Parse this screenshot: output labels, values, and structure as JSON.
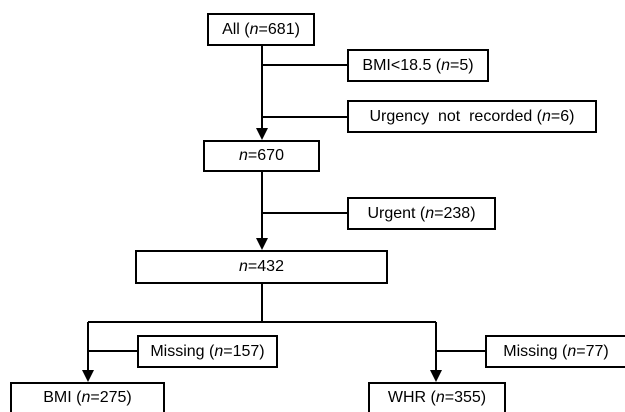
{
  "diagram": {
    "type": "flowchart",
    "nodes": {
      "all": {
        "pre": "All (",
        "var": "n",
        "post": "=681)"
      },
      "excl_bmi": {
        "pre": "BMI<18.5 (",
        "var": "n",
        "post": "=5)"
      },
      "excl_urgency": {
        "pre": "Urgency  not  recorded (",
        "var": "n",
        "post": "=6)"
      },
      "n670": {
        "pre": "",
        "var": "n",
        "post": "=670"
      },
      "excl_urgent": {
        "pre": "Urgent (",
        "var": "n",
        "post": "=238)"
      },
      "n432": {
        "pre": "",
        "var": "n",
        "post": "=432"
      },
      "missing_bmi": {
        "pre": "Missing (",
        "var": "n",
        "post": "=157)"
      },
      "missing_whr": {
        "pre": "Missing (",
        "var": "n",
        "post": "=77)"
      },
      "bmi": {
        "pre": "BMI (",
        "var": "n",
        "post": "=275)"
      },
      "whr": {
        "pre": "WHR (",
        "var": "n",
        "post": "=355)"
      }
    },
    "edges": [
      {
        "from": "all",
        "to": "n670"
      },
      {
        "from": "all",
        "to": "excl_bmi",
        "kind": "exclusion"
      },
      {
        "from": "all",
        "to": "excl_urgency",
        "kind": "exclusion"
      },
      {
        "from": "n670",
        "to": "n432"
      },
      {
        "from": "n670",
        "to": "excl_urgent",
        "kind": "exclusion"
      },
      {
        "from": "n432",
        "to": "bmi"
      },
      {
        "from": "n432",
        "to": "whr"
      },
      {
        "from": "n432",
        "to": "missing_bmi",
        "kind": "exclusion"
      },
      {
        "from": "n432",
        "to": "missing_whr",
        "kind": "exclusion"
      }
    ]
  }
}
